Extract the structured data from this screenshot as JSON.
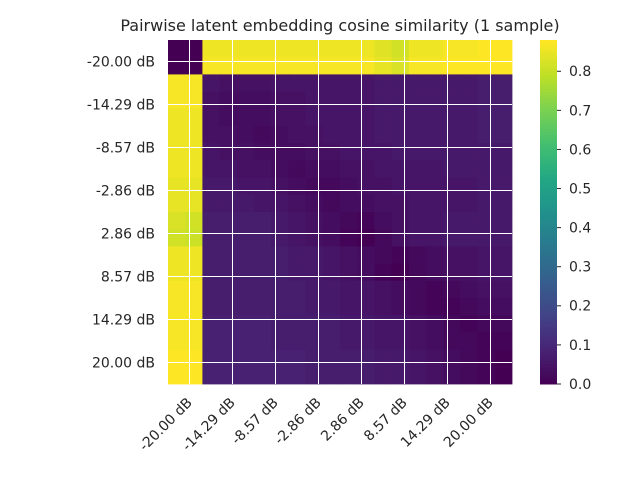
{
  "chart_data": {
    "type": "heatmap",
    "title": "Pairwise latent embedding cosine similarity (1 sample)",
    "xlabel": "",
    "ylabel": "",
    "x_tick_labels": [
      "-20.00 dB",
      "-14.29 dB",
      "-8.57 dB",
      "-2.86 dB",
      "2.86 dB",
      "8.57 dB",
      "14.29 dB",
      "20.00 dB"
    ],
    "y_tick_labels": [
      "-20.00 dB",
      "-14.29 dB",
      "-8.57 dB",
      "-2.86 dB",
      "2.86 dB",
      "8.57 dB",
      "14.29 dB",
      "20.00 dB"
    ],
    "grid": true,
    "colormap": "viridis",
    "vmin": 0.0,
    "vmax": 0.88,
    "colorbar_ticks": [
      0.0,
      0.1,
      0.2,
      0.3,
      0.4,
      0.5,
      0.6,
      0.7,
      0.8
    ],
    "colorbar_tick_labels": [
      "0.0",
      "0.1",
      "0.2",
      "0.3",
      "0.4",
      "0.5",
      "0.6",
      "0.7",
      "0.8"
    ],
    "values": [
      [
        0.0,
        0.0,
        0.86,
        0.86,
        0.86,
        0.86,
        0.86,
        0.86,
        0.86,
        0.86,
        0.86,
        0.86,
        0.84,
        0.82,
        0.86,
        0.86,
        0.87,
        0.87,
        0.88,
        0.88
      ],
      [
        0.0,
        0.0,
        0.87,
        0.87,
        0.87,
        0.87,
        0.87,
        0.87,
        0.87,
        0.87,
        0.87,
        0.87,
        0.85,
        0.83,
        0.87,
        0.87,
        0.88,
        0.88,
        0.88,
        0.88
      ],
      [
        0.87,
        0.87,
        0.05,
        0.04,
        0.04,
        0.04,
        0.05,
        0.05,
        0.05,
        0.05,
        0.05,
        0.05,
        0.06,
        0.06,
        0.06,
        0.06,
        0.06,
        0.06,
        0.07,
        0.07
      ],
      [
        0.87,
        0.87,
        0.04,
        0.03,
        0.03,
        0.03,
        0.04,
        0.04,
        0.05,
        0.05,
        0.05,
        0.05,
        0.06,
        0.06,
        0.06,
        0.06,
        0.06,
        0.06,
        0.07,
        0.07
      ],
      [
        0.86,
        0.86,
        0.04,
        0.03,
        0.03,
        0.03,
        0.04,
        0.04,
        0.05,
        0.05,
        0.05,
        0.05,
        0.06,
        0.06,
        0.06,
        0.06,
        0.06,
        0.06,
        0.07,
        0.07
      ],
      [
        0.86,
        0.86,
        0.04,
        0.04,
        0.03,
        0.02,
        0.03,
        0.04,
        0.04,
        0.05,
        0.05,
        0.05,
        0.06,
        0.06,
        0.06,
        0.06,
        0.06,
        0.06,
        0.07,
        0.07
      ],
      [
        0.86,
        0.86,
        0.05,
        0.04,
        0.04,
        0.03,
        0.03,
        0.03,
        0.04,
        0.04,
        0.05,
        0.05,
        0.05,
        0.06,
        0.06,
        0.06,
        0.06,
        0.06,
        0.06,
        0.06
      ],
      [
        0.86,
        0.86,
        0.05,
        0.05,
        0.04,
        0.04,
        0.03,
        0.02,
        0.03,
        0.03,
        0.04,
        0.04,
        0.05,
        0.05,
        0.05,
        0.05,
        0.06,
        0.06,
        0.06,
        0.06
      ],
      [
        0.85,
        0.85,
        0.06,
        0.06,
        0.05,
        0.05,
        0.04,
        0.03,
        0.02,
        0.02,
        0.03,
        0.04,
        0.04,
        0.05,
        0.05,
        0.05,
        0.05,
        0.05,
        0.06,
        0.06
      ],
      [
        0.85,
        0.85,
        0.06,
        0.06,
        0.06,
        0.05,
        0.05,
        0.04,
        0.03,
        0.02,
        0.03,
        0.03,
        0.04,
        0.04,
        0.05,
        0.05,
        0.05,
        0.05,
        0.06,
        0.06
      ],
      [
        0.83,
        0.82,
        0.07,
        0.07,
        0.07,
        0.07,
        0.06,
        0.05,
        0.04,
        0.03,
        0.02,
        0.01,
        0.03,
        0.04,
        0.05,
        0.05,
        0.06,
        0.06,
        0.06,
        0.06
      ],
      [
        0.82,
        0.81,
        0.07,
        0.07,
        0.07,
        0.07,
        0.06,
        0.05,
        0.04,
        0.03,
        0.01,
        0.0,
        0.02,
        0.04,
        0.05,
        0.05,
        0.06,
        0.06,
        0.06,
        0.06
      ],
      [
        0.86,
        0.86,
        0.07,
        0.07,
        0.07,
        0.07,
        0.07,
        0.06,
        0.06,
        0.05,
        0.04,
        0.03,
        0.02,
        0.01,
        0.02,
        0.03,
        0.04,
        0.04,
        0.05,
        0.05
      ],
      [
        0.86,
        0.86,
        0.07,
        0.07,
        0.07,
        0.07,
        0.07,
        0.06,
        0.06,
        0.05,
        0.04,
        0.03,
        0.01,
        0.0,
        0.02,
        0.03,
        0.04,
        0.04,
        0.05,
        0.05
      ],
      [
        0.87,
        0.87,
        0.07,
        0.07,
        0.07,
        0.07,
        0.07,
        0.07,
        0.06,
        0.06,
        0.05,
        0.05,
        0.04,
        0.03,
        0.02,
        0.01,
        0.02,
        0.03,
        0.04,
        0.04
      ],
      [
        0.87,
        0.87,
        0.07,
        0.07,
        0.07,
        0.07,
        0.07,
        0.07,
        0.06,
        0.06,
        0.05,
        0.05,
        0.04,
        0.03,
        0.02,
        0.01,
        0.01,
        0.02,
        0.03,
        0.03
      ],
      [
        0.87,
        0.87,
        0.08,
        0.08,
        0.08,
        0.08,
        0.07,
        0.07,
        0.07,
        0.07,
        0.06,
        0.06,
        0.05,
        0.05,
        0.04,
        0.03,
        0.02,
        0.01,
        0.02,
        0.02
      ],
      [
        0.87,
        0.87,
        0.08,
        0.08,
        0.08,
        0.08,
        0.07,
        0.07,
        0.07,
        0.07,
        0.06,
        0.06,
        0.05,
        0.05,
        0.04,
        0.03,
        0.02,
        0.02,
        0.01,
        0.01
      ],
      [
        0.88,
        0.88,
        0.08,
        0.08,
        0.08,
        0.08,
        0.08,
        0.08,
        0.07,
        0.07,
        0.07,
        0.07,
        0.06,
        0.06,
        0.05,
        0.04,
        0.03,
        0.02,
        0.01,
        0.0
      ],
      [
        0.88,
        0.88,
        0.08,
        0.08,
        0.08,
        0.08,
        0.08,
        0.08,
        0.07,
        0.07,
        0.07,
        0.07,
        0.06,
        0.06,
        0.05,
        0.04,
        0.03,
        0.02,
        0.01,
        0.0
      ]
    ]
  }
}
